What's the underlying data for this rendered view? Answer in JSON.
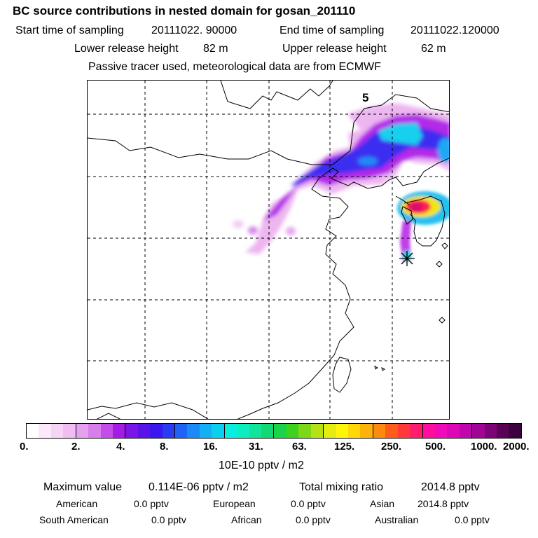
{
  "header": {
    "title": "BC  source contributions in nested domain for gosan_201110",
    "start_label": "Start time of sampling",
    "start_value": "20111022. 90000",
    "end_label": "End time of sampling",
    "end_value": "20111022.120000",
    "lower_label": "Lower release height",
    "lower_value": "82 m",
    "upper_label": "Upper release height",
    "upper_value": "62 m",
    "tracer_note": "Passive tracer used, meteorological data are from ECMWF"
  },
  "map": {
    "panel_number": "5"
  },
  "colorbar": {
    "colors": [
      "#ffffff",
      "#fbe8fb",
      "#f5d4f6",
      "#efbdf2",
      "#e4a1ee",
      "#d77eea",
      "#c44ce8",
      "#a51ce6",
      "#7b16e6",
      "#5a14e8",
      "#3a18ee",
      "#2a3bf2",
      "#1f63f6",
      "#1b8af7",
      "#12aff6",
      "#0ccfef",
      "#06eedf",
      "#0ceec0",
      "#10e49a",
      "#14d873",
      "#1ad348",
      "#3ed21e",
      "#7ed81a",
      "#b6e214",
      "#e4ec10",
      "#fff50a",
      "#ffd808",
      "#ffb20a",
      "#ff8a10",
      "#ff5c1a",
      "#ff3a38",
      "#ff1e6b",
      "#ff0d9e",
      "#f00ab8",
      "#dc08b8",
      "#c006ac",
      "#a00596",
      "#7d0377",
      "#5a0257",
      "#3d0140"
    ],
    "tick_labels": [
      "0.",
      "2.",
      "4.",
      "8.",
      "16.",
      "31.",
      "63.",
      "125.",
      "250.",
      "500.",
      "1000.",
      "2000."
    ],
    "units": "10E-10 pptv / m2"
  },
  "footer": {
    "max_label": "Maximum value",
    "max_value": "0.114E-06 pptv / m2",
    "total_label": "Total mixing ratio",
    "total_value": "2014.8 pptv",
    "american_label": "American",
    "american_value": "0.0 pptv",
    "european_label": "European",
    "european_value": "0.0 pptv",
    "asian_label": "Asian",
    "asian_value": "2014.8 pptv",
    "south_american_label": "South American",
    "south_american_value": "0.0 pptv",
    "african_label": "African",
    "african_value": "0.0 pptv",
    "australian_label": "Australian",
    "australian_value": "0.0 pptv"
  }
}
